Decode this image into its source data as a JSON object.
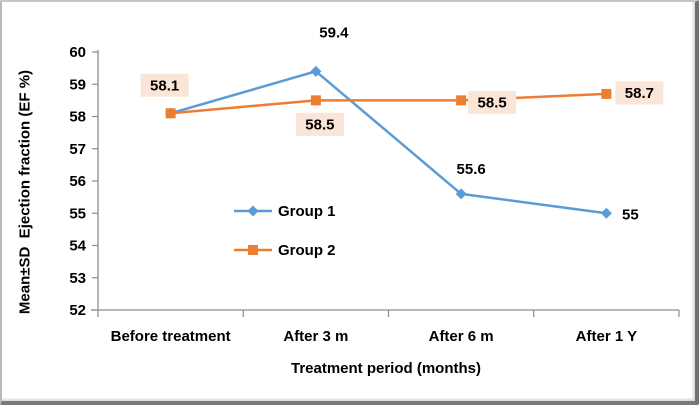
{
  "chart_data": {
    "type": "line",
    "title": "",
    "categories": [
      "Before treatment",
      "After 3 m",
      "After 6 m",
      "After 1 Y"
    ],
    "series": [
      {
        "name": "Group 1",
        "color": "#5B9BD5",
        "marker": "diamond",
        "values": [
          58.1,
          59.4,
          55.6,
          55
        ],
        "data_labels": [
          "",
          "59.4",
          "55.6",
          "55"
        ],
        "label_fill": ""
      },
      {
        "name": "Group 2",
        "color": "#ED7D31",
        "marker": "square",
        "values": [
          58.1,
          58.5,
          58.5,
          58.7
        ],
        "data_labels": [
          "58.1",
          "58.5",
          "58.5",
          "58.7"
        ],
        "label_fill": "#FBE5D6"
      }
    ],
    "xlabel": "Treatment period (months)",
    "ylabel": "Mean±SD  Ejection fraction (EF %)",
    "ylim": [
      52,
      60
    ],
    "ytick_step": 1,
    "grid": false,
    "legend_position": "inside-left-middle",
    "axis_color": "#8C8C8C",
    "text_color": "#000000",
    "background": "#FFFFFF"
  }
}
